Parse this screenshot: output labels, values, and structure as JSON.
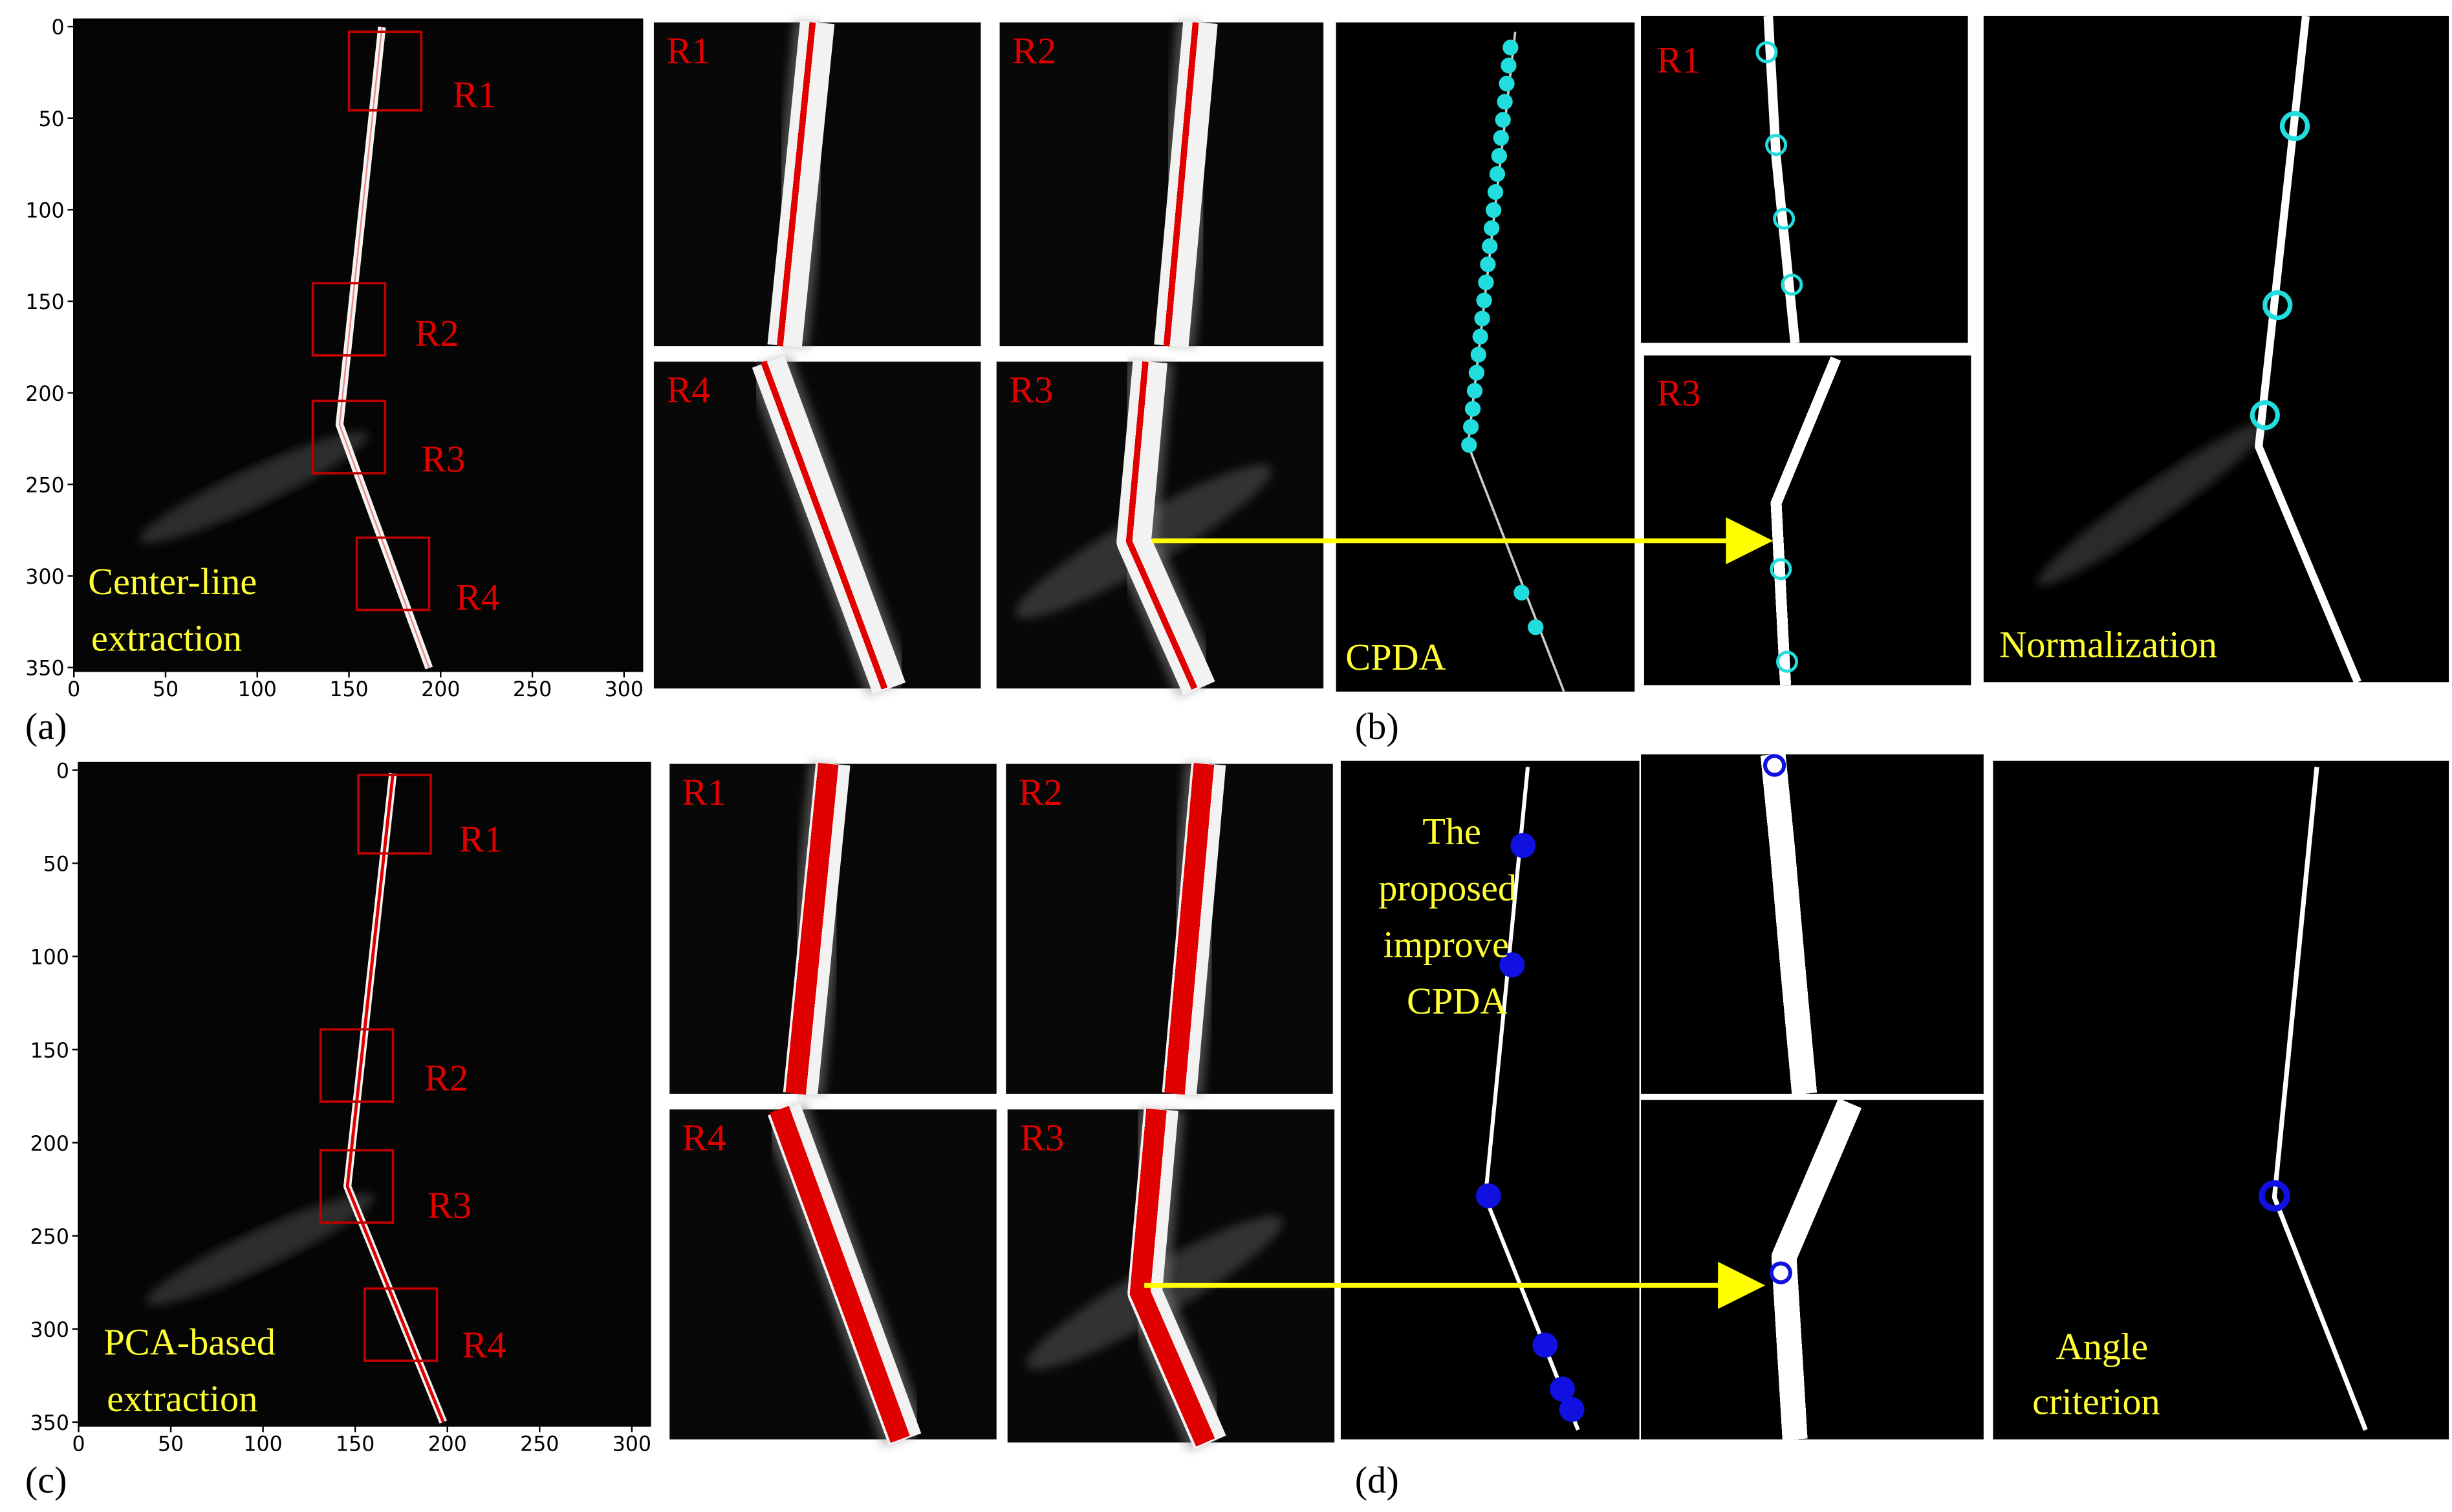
{
  "figure": {
    "panel_a": {
      "label": "(a)",
      "caption": [
        "Center-line",
        "extraction"
      ],
      "regions": [
        "R1",
        "R2",
        "R3",
        "R4"
      ],
      "zooms": [
        "R1",
        "R2",
        "R4",
        "R3"
      ],
      "xlim": [
        0,
        310
      ],
      "ylim": [
        -4,
        352
      ],
      "xticks": [
        0,
        50,
        100,
        150,
        200,
        250,
        300
      ],
      "yticks": [
        0,
        50,
        100,
        150,
        200,
        250,
        300,
        350
      ]
    },
    "panel_b": {
      "label": "(b)",
      "method": "CPDA",
      "zooms": [
        "R1",
        "R3"
      ],
      "result": "Normalization"
    },
    "panel_c": {
      "label": "(c)",
      "caption": [
        "PCA-based",
        "extraction"
      ],
      "regions": [
        "R1",
        "R2",
        "R3",
        "R4"
      ],
      "zooms": [
        "R1",
        "R2",
        "R4",
        "R3"
      ],
      "xlim": [
        0,
        310
      ],
      "ylim": [
        -4,
        352
      ],
      "xticks": [
        0,
        50,
        100,
        150,
        200,
        250,
        300
      ],
      "yticks": [
        0,
        50,
        100,
        150,
        200,
        250,
        300,
        350
      ]
    },
    "panel_d": {
      "label": "(d)",
      "method": [
        "The",
        "proposed",
        "improve",
        "CPDA"
      ],
      "result": [
        "Angle",
        "criterion"
      ]
    }
  }
}
